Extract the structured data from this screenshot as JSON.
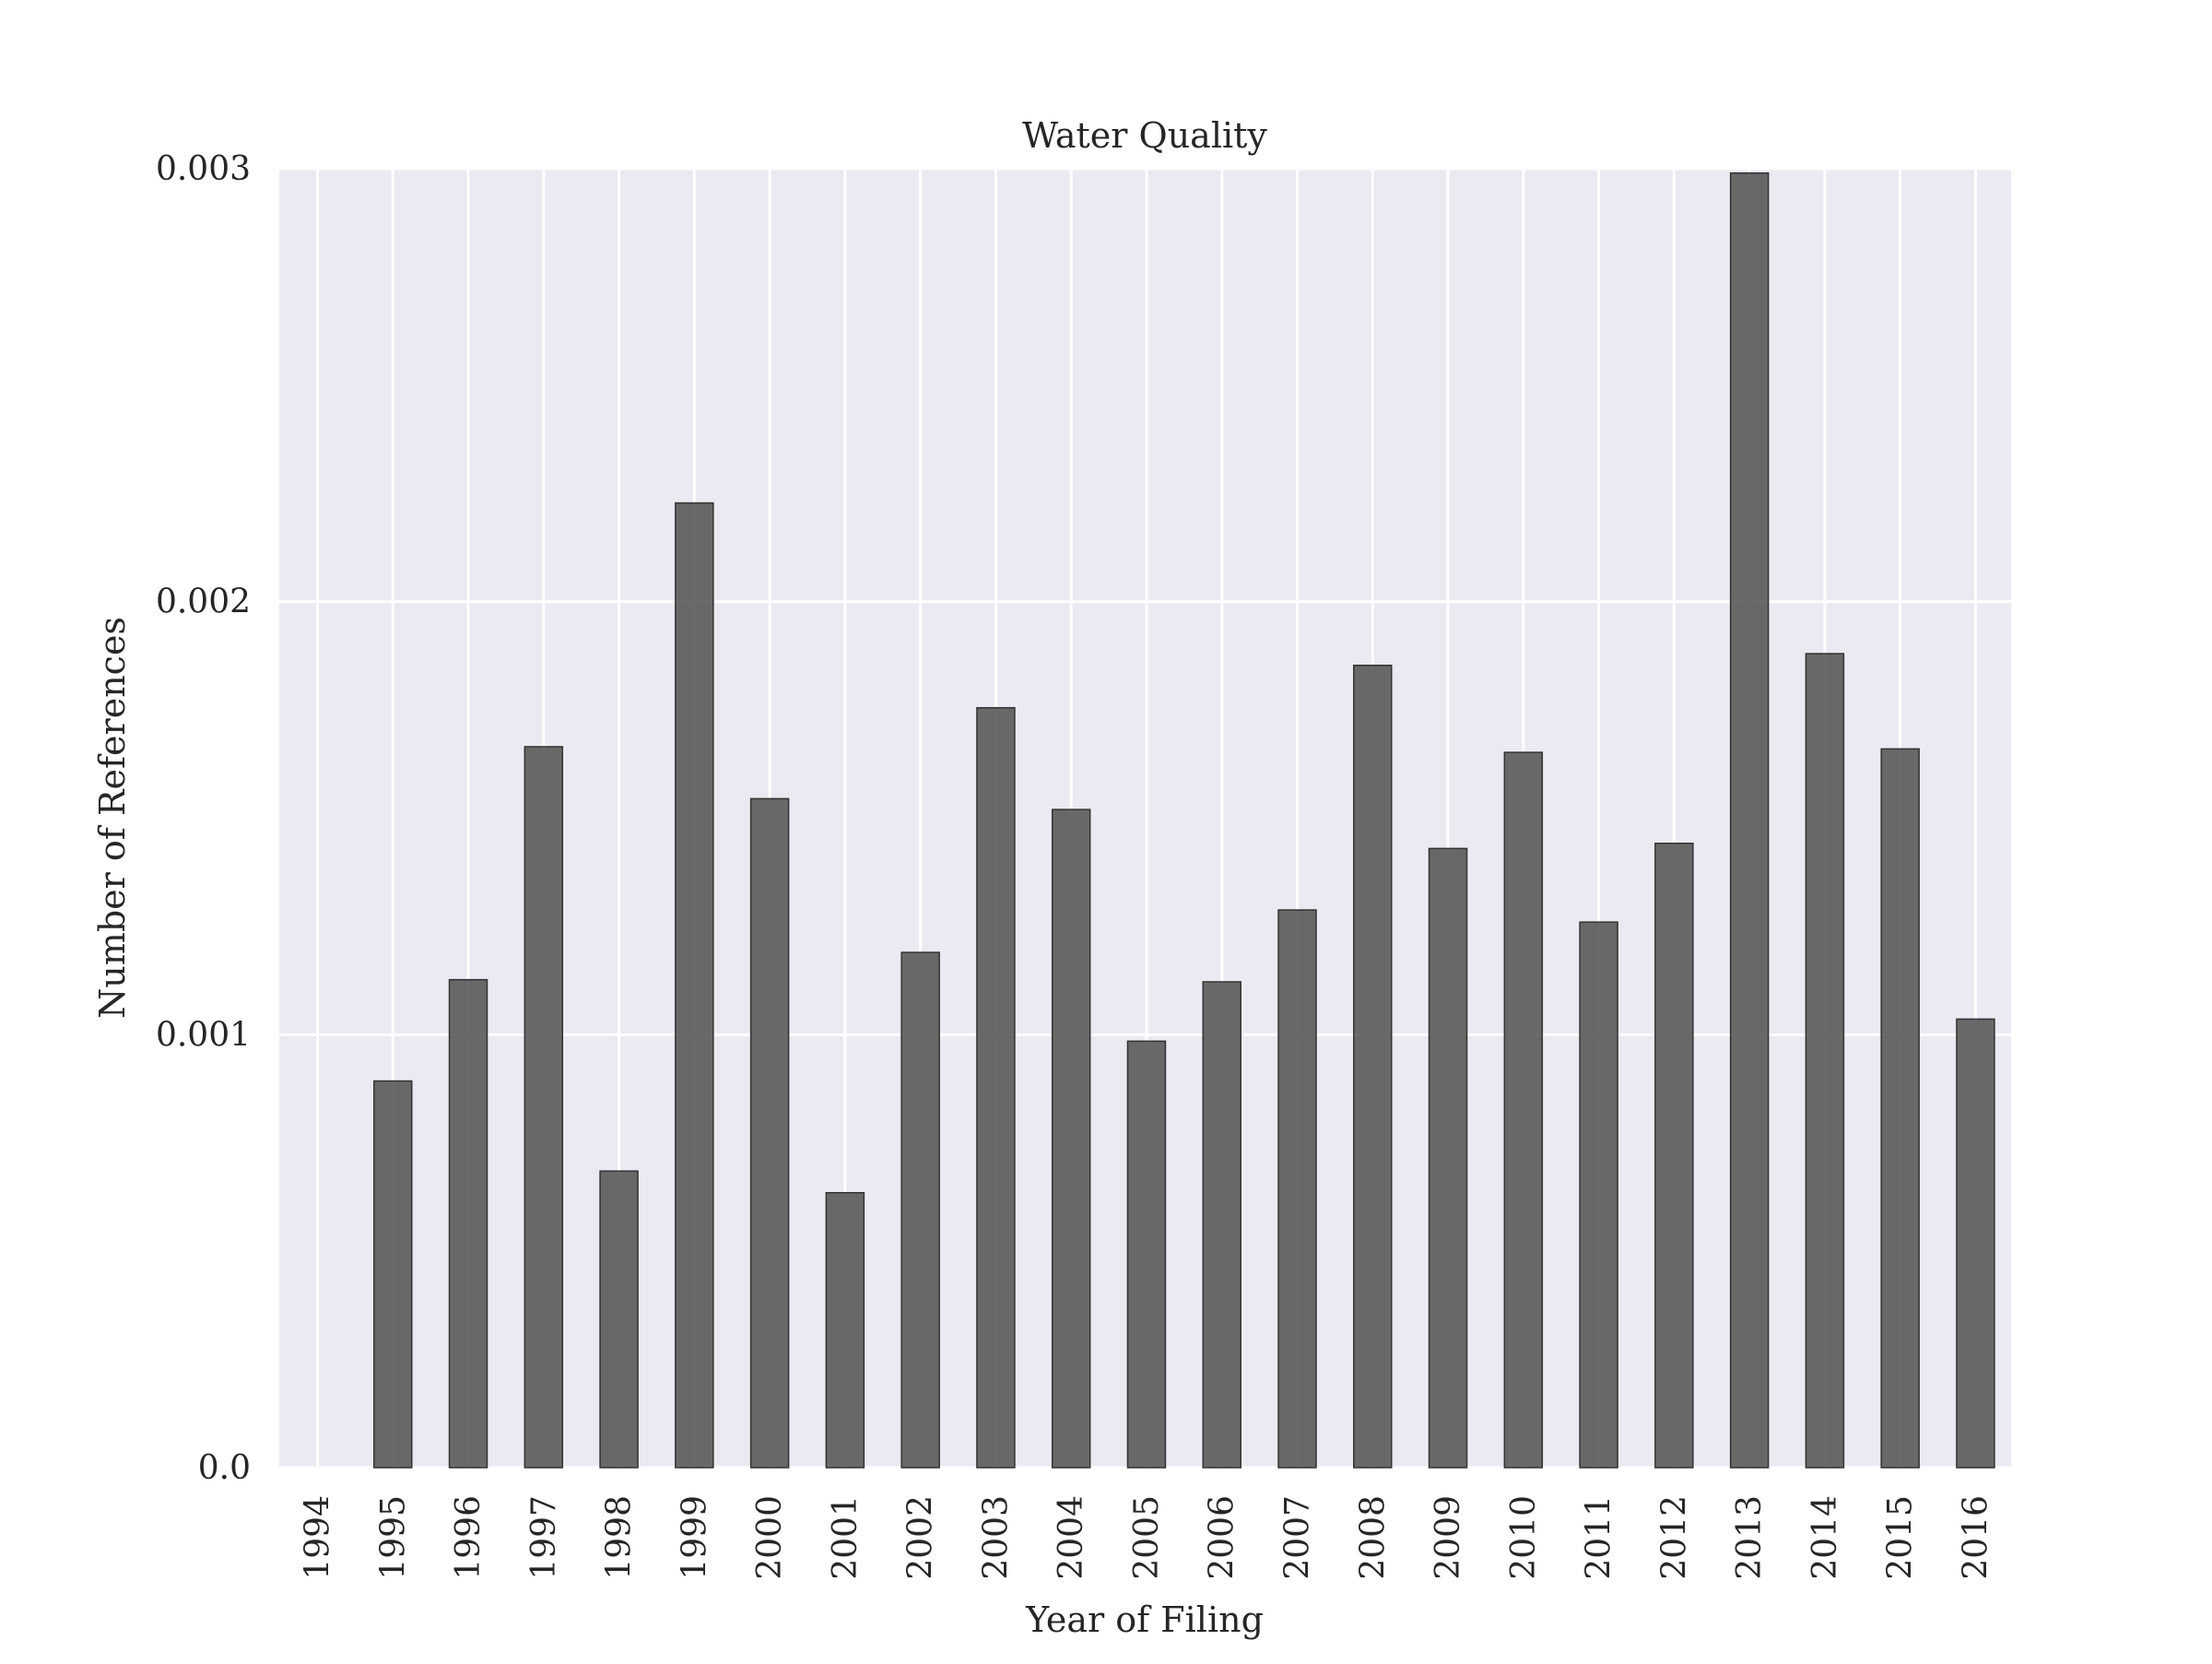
{
  "chart_data": {
    "type": "bar",
    "title": "Water Quality",
    "xlabel": "Year of Filing",
    "ylabel": "Number of References",
    "categories": [
      "1994",
      "1995",
      "1996",
      "1997",
      "1998",
      "1999",
      "2000",
      "2001",
      "2002",
      "2003",
      "2004",
      "2005",
      "2006",
      "2007",
      "2008",
      "2009",
      "2010",
      "2011",
      "2012",
      "2013",
      "2014",
      "2015",
      "2016"
    ],
    "values": [
      0.0,
      0.000893,
      0.001127,
      0.001665,
      0.000685,
      0.002228,
      0.001545,
      0.000635,
      0.00119,
      0.001755,
      0.00152,
      0.000985,
      0.001122,
      0.001288,
      0.001853,
      0.00143,
      0.001652,
      0.00126,
      0.001442,
      0.00299,
      0.00188,
      0.00166,
      0.001036
    ],
    "ylim": [
      0,
      0.003
    ],
    "yticks": [
      0.0,
      0.001,
      0.002,
      0.003
    ],
    "ytick_labels": [
      "0.0",
      "0.001",
      "0.002",
      "0.003"
    ],
    "grid": true,
    "colors": {
      "plot_background": "#eaeaf2",
      "grid": "#ffffff",
      "bar_fill": "#555555",
      "bar_edge": "#333333"
    }
  }
}
